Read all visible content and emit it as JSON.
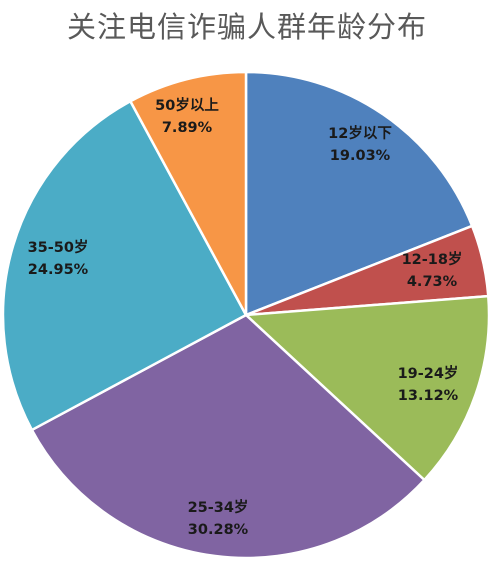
{
  "chart_data": {
    "type": "pie",
    "title": "关注电信诈骗人群年龄分布",
    "categories": [
      "12岁以下",
      "12-18岁",
      "19-24岁",
      "25-34岁",
      "35-50岁",
      "50岁以上"
    ],
    "values": [
      19.03,
      4.73,
      13.12,
      30.28,
      24.95,
      7.89
    ],
    "value_labels": [
      "19.03%",
      "4.73%",
      "13.12%",
      "30.28%",
      "24.95%",
      "7.89%"
    ],
    "colors": [
      "#4F81BD",
      "#C0504D",
      "#9BBB59",
      "#8064A2",
      "#4BACC6",
      "#F79646"
    ],
    "start_angle_deg": 0,
    "direction": "clockwise",
    "legend": "none",
    "labels_position": "inside"
  }
}
